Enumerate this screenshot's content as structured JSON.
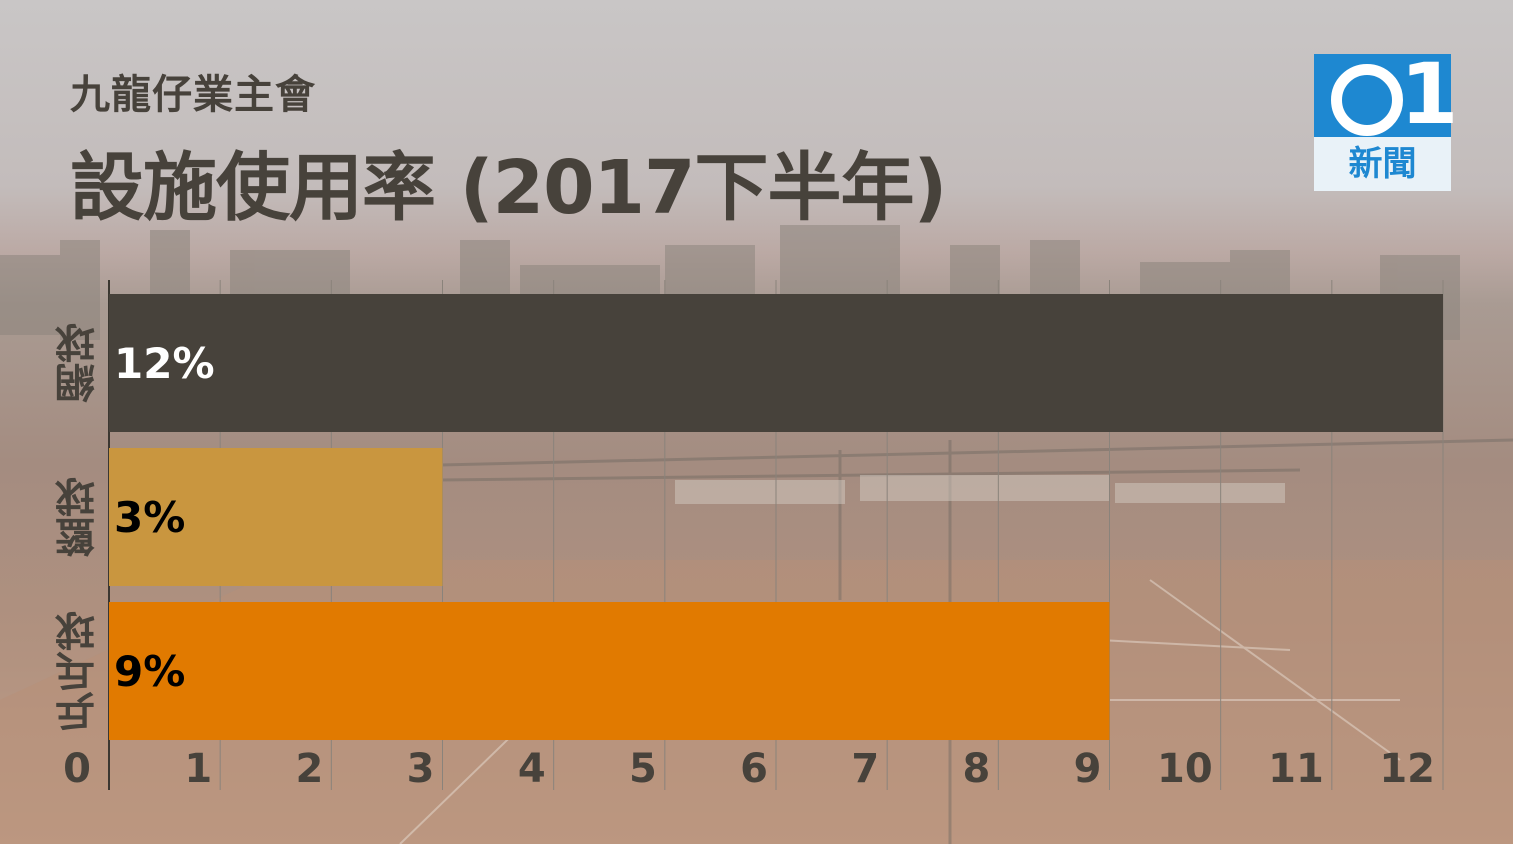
{
  "title": {
    "subtitle": "九龍仔業主會",
    "main": "設施使用率 (2017下半年)"
  },
  "logo": {
    "mark": "01",
    "text": "新聞",
    "color": "#1e88d1"
  },
  "chart_data": {
    "type": "bar",
    "orientation": "horizontal",
    "categories": [
      "網球",
      "籃球",
      "乒乓球"
    ],
    "values": [
      12,
      3,
      9
    ],
    "labels": [
      "12%",
      "3%",
      "9%"
    ],
    "colors": [
      "#47423b",
      "#c9963f",
      "#e17a00"
    ],
    "label_colors": [
      "#ffffff",
      "#000000",
      "#000000"
    ],
    "xlim": [
      0,
      12
    ],
    "xticks": [
      "0",
      "1",
      "2",
      "3",
      "4",
      "5",
      "6",
      "7",
      "8",
      "9",
      "10",
      "11",
      "12"
    ],
    "grid": true
  }
}
